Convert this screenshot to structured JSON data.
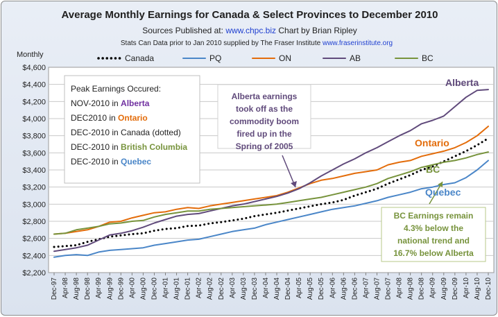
{
  "title": "Average Monthly Earnings for Canada & Select Provinces to December 2010",
  "subtitle": {
    "prefix": "Sources Published  at:",
    "site": "www.chpc.biz",
    "suffix": "Chart by Brian Ripley"
  },
  "source_line": {
    "text": "Stats Can Data prior to Jan 2010 supplied by The Fraser Institute",
    "site": "www.fraserinstitute.org"
  },
  "ylabel": "Monthly",
  "peak_box": {
    "heading": "Peak Earnings Occured:",
    "lines": [
      {
        "prefix": "NOV-2010 in ",
        "place": "Alberta",
        "color": "#7030a0"
      },
      {
        "prefix": "DEC2010 in ",
        "place": "Ontario",
        "color": "#e36c0a"
      },
      {
        "prefix": "DEC-2010 in Canada (dotted)",
        "place": "",
        "color": "#1f1f1f"
      },
      {
        "prefix": "DEC-2010 in ",
        "place": "British Columbia",
        "color": "#77933c"
      },
      {
        "prefix": "DEC-2010 in ",
        "place": "Quebec",
        "color": "#4a86c8"
      }
    ]
  },
  "annotations": {
    "alberta_boom": [
      "Alberta earnings",
      "took off as the",
      "commodity boom",
      "fired up in the",
      "Spring of 2005"
    ],
    "bc_note": [
      "BC Earnings remain",
      "4.3% below the",
      "national trend and",
      "16.7% below Alberta"
    ]
  },
  "series_labels": {
    "alberta": "Alberta",
    "ontario": "Ontario",
    "bc": "BC",
    "quebec": "Quebec"
  },
  "chart_data": {
    "type": "line",
    "ylim": [
      2200,
      4600
    ],
    "yticks": [
      "$2,200",
      "$2,400",
      "$2,600",
      "$2,800",
      "$3,000",
      "$3,200",
      "$3,400",
      "$3,600",
      "$3,800",
      "$4,000",
      "$4,200",
      "$4,400",
      "$4,600"
    ],
    "xticks": [
      "Dec-97",
      "Apr-98",
      "Aug-98",
      "Dec-98",
      "Apr-99",
      "Aug-99",
      "Dec-99",
      "Apr-00",
      "Aug-00",
      "Dec-00",
      "Apr-01",
      "Aug-01",
      "Dec-01",
      "Apr-02",
      "Aug-02",
      "Dec-02",
      "Apr-03",
      "Aug-03",
      "Dec-03",
      "Apr-04",
      "Aug-04",
      "Dec-04",
      "Apr-05",
      "Aug-05",
      "Dec-05",
      "Apr-06",
      "Aug-06",
      "Dec-06",
      "Apr-07",
      "Aug-07",
      "Dec-07",
      "Apr-08",
      "Aug-08",
      "Dec-08",
      "Apr-09",
      "Aug-09",
      "Dec-09",
      "Apr-10",
      "Aug-10",
      "Dec-10"
    ],
    "grid": true,
    "legend_position": "top",
    "series": [
      {
        "name": "Canada",
        "color": "#000000",
        "style": "dotted",
        "values": [
          2500,
          2510,
          2520,
          2560,
          2590,
          2620,
          2635,
          2650,
          2660,
          2690,
          2710,
          2720,
          2745,
          2750,
          2775,
          2790,
          2810,
          2830,
          2860,
          2880,
          2900,
          2925,
          2950,
          2975,
          3000,
          3020,
          3050,
          3100,
          3140,
          3180,
          3240,
          3290,
          3340,
          3400,
          3440,
          3500,
          3560,
          3620,
          3690,
          3770
        ]
      },
      {
        "name": "PQ",
        "color": "#4a86c8",
        "style": "solid",
        "values": [
          2380,
          2400,
          2410,
          2400,
          2440,
          2460,
          2470,
          2480,
          2490,
          2520,
          2540,
          2560,
          2580,
          2590,
          2620,
          2650,
          2680,
          2700,
          2720,
          2760,
          2790,
          2820,
          2850,
          2880,
          2910,
          2940,
          2960,
          2980,
          3010,
          3040,
          3080,
          3110,
          3140,
          3180,
          3200,
          3230,
          3250,
          3310,
          3400,
          3510
        ]
      },
      {
        "name": "ON",
        "color": "#e36c0a",
        "style": "solid",
        "values": [
          2650,
          2660,
          2680,
          2700,
          2740,
          2790,
          2800,
          2840,
          2870,
          2900,
          2910,
          2940,
          2960,
          2950,
          2980,
          3000,
          3020,
          3040,
          3060,
          3080,
          3100,
          3140,
          3190,
          3240,
          3280,
          3300,
          3330,
          3360,
          3380,
          3400,
          3460,
          3490,
          3510,
          3560,
          3590,
          3620,
          3660,
          3720,
          3800,
          3910
        ]
      },
      {
        "name": "AB",
        "color": "#604a7b",
        "style": "solid",
        "values": [
          2450,
          2470,
          2490,
          2520,
          2580,
          2640,
          2660,
          2690,
          2730,
          2780,
          2820,
          2860,
          2880,
          2890,
          2920,
          2950,
          2980,
          3000,
          3030,
          3060,
          3090,
          3130,
          3180,
          3250,
          3330,
          3400,
          3470,
          3530,
          3600,
          3660,
          3730,
          3800,
          3860,
          3940,
          3980,
          4030,
          4140,
          4250,
          4330,
          4340
        ]
      },
      {
        "name": "BC",
        "color": "#77933c",
        "style": "solid",
        "values": [
          2650,
          2660,
          2700,
          2720,
          2740,
          2770,
          2780,
          2800,
          2810,
          2850,
          2880,
          2900,
          2920,
          2920,
          2940,
          2950,
          2960,
          2970,
          2980,
          2990,
          3000,
          3020,
          3040,
          3060,
          3080,
          3110,
          3140,
          3170,
          3200,
          3240,
          3300,
          3340,
          3380,
          3430,
          3460,
          3490,
          3510,
          3540,
          3580,
          3610
        ]
      }
    ]
  }
}
